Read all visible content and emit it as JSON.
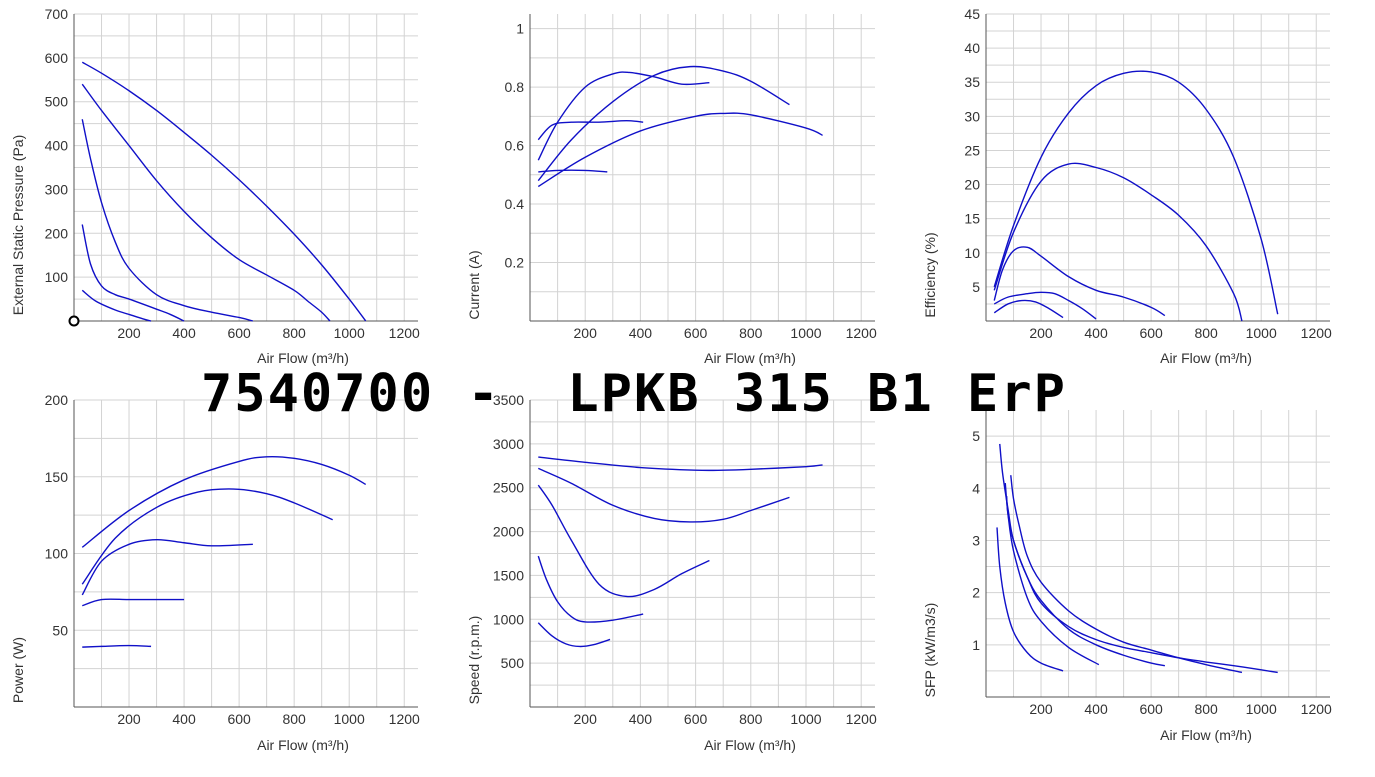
{
  "title": "7540700 -  LPKB 315 B1 ErP",
  "colors": {
    "curve": "#1010c8",
    "grid": "#d3d3d3"
  },
  "chart_data": [
    {
      "id": "pressure",
      "type": "line",
      "xlabel": "Air Flow (m³/h)",
      "ylabel": "External Static Pressure (Pa)",
      "xlim": [
        0,
        1250
      ],
      "ylim": [
        0,
        700
      ],
      "xticks": [
        200,
        400,
        600,
        800,
        1000,
        1200
      ],
      "yticks": [
        100,
        200,
        300,
        400,
        500,
        600,
        700
      ],
      "grid": true,
      "marker": {
        "x": 0,
        "y": 0
      },
      "series": [
        {
          "x": [
            30,
            100,
            200,
            300,
            400,
            500,
            600,
            700,
            800,
            900,
            1000,
            1060
          ],
          "y": [
            590,
            565,
            525,
            480,
            430,
            378,
            322,
            262,
            198,
            128,
            50,
            0
          ]
        },
        {
          "x": [
            30,
            100,
            200,
            300,
            400,
            500,
            600,
            700,
            800,
            850,
            900,
            930
          ],
          "y": [
            540,
            480,
            400,
            320,
            250,
            190,
            140,
            105,
            70,
            45,
            20,
            0
          ]
        },
        {
          "x": [
            30,
            60,
            100,
            150,
            200,
            300,
            400,
            500,
            600,
            650
          ],
          "y": [
            460,
            370,
            270,
            180,
            120,
            60,
            35,
            20,
            8,
            0
          ]
        },
        {
          "x": [
            30,
            60,
            100,
            150,
            200,
            300,
            350,
            400
          ],
          "y": [
            220,
            130,
            80,
            60,
            50,
            27,
            15,
            0
          ]
        },
        {
          "x": [
            30,
            80,
            150,
            200,
            250,
            280
          ],
          "y": [
            70,
            45,
            25,
            15,
            5,
            0
          ]
        }
      ]
    },
    {
      "id": "current",
      "type": "line",
      "xlabel": "Air Flow (m³/h)",
      "ylabel": "Current (A)",
      "xlim": [
        0,
        1250
      ],
      "ylim": [
        0,
        1.05
      ],
      "xticks": [
        200,
        400,
        600,
        800,
        1000,
        1200
      ],
      "yticks": [
        0.2,
        0.4,
        0.6,
        0.8,
        1
      ],
      "grid": true,
      "series": [
        {
          "x": [
            30,
            200,
            400,
            600,
            700,
            800,
            1000,
            1060
          ],
          "y": [
            0.46,
            0.56,
            0.65,
            0.7,
            0.71,
            0.705,
            0.66,
            0.635
          ]
        },
        {
          "x": [
            30,
            150,
            300,
            450,
            580,
            700,
            800,
            940
          ],
          "y": [
            0.48,
            0.62,
            0.75,
            0.84,
            0.87,
            0.855,
            0.82,
            0.74
          ]
        },
        {
          "x": [
            30,
            100,
            200,
            300,
            360,
            450,
            550,
            650
          ],
          "y": [
            0.55,
            0.68,
            0.8,
            0.845,
            0.85,
            0.835,
            0.81,
            0.815
          ]
        },
        {
          "x": [
            30,
            80,
            150,
            250,
            350,
            410
          ],
          "y": [
            0.62,
            0.67,
            0.68,
            0.68,
            0.685,
            0.68
          ]
        },
        {
          "x": [
            30,
            100,
            200,
            280
          ],
          "y": [
            0.51,
            0.515,
            0.515,
            0.51
          ]
        }
      ]
    },
    {
      "id": "efficiency",
      "type": "line",
      "xlabel": "Air Flow (m³/h)",
      "ylabel": "Efficiency (%)",
      "xlim": [
        0,
        1250
      ],
      "ylim": [
        0,
        45
      ],
      "xticks": [
        200,
        400,
        600,
        800,
        1000,
        1200
      ],
      "yticks": [
        5,
        10,
        15,
        20,
        25,
        30,
        35,
        40,
        45
      ],
      "grid": true,
      "series": [
        {
          "x": [
            30,
            100,
            200,
            300,
            400,
            500,
            600,
            700,
            800,
            900,
            1000,
            1060
          ],
          "y": [
            5,
            14,
            24,
            30.5,
            34.5,
            36.3,
            36.5,
            35,
            31,
            24,
            12,
            1
          ]
        },
        {
          "x": [
            30,
            100,
            200,
            300,
            400,
            500,
            600,
            700,
            800,
            900,
            930
          ],
          "y": [
            4.5,
            13,
            20.5,
            23,
            22.5,
            21,
            18.5,
            15.5,
            11,
            4,
            0
          ]
        },
        {
          "x": [
            30,
            60,
            100,
            150,
            200,
            300,
            400,
            500,
            600,
            650
          ],
          "y": [
            3,
            7.5,
            10.3,
            10.8,
            9.5,
            6.5,
            4.5,
            3.5,
            2,
            0.8
          ]
        },
        {
          "x": [
            30,
            80,
            150,
            200,
            250,
            300,
            350,
            400
          ],
          "y": [
            2.5,
            3.5,
            4,
            4.2,
            4,
            3,
            1.8,
            0.3
          ]
        },
        {
          "x": [
            30,
            80,
            130,
            180,
            230,
            280
          ],
          "y": [
            1.2,
            2.5,
            3,
            2.8,
            1.8,
            0.5
          ]
        }
      ]
    },
    {
      "id": "power",
      "type": "line",
      "xlabel": "Air Flow (m³/h)",
      "ylabel": "Power (W)",
      "xlim": [
        0,
        1250
      ],
      "ylim": [
        0,
        200
      ],
      "xticks": [
        200,
        400,
        600,
        800,
        1000,
        1200
      ],
      "yticks": [
        50,
        100,
        150,
        200
      ],
      "grid": true,
      "series": [
        {
          "x": [
            30,
            200,
            400,
            600,
            700,
            800,
            900,
            1000,
            1060
          ],
          "y": [
            104,
            128,
            148,
            160,
            163,
            162,
            158,
            151,
            145
          ]
        },
        {
          "x": [
            30,
            150,
            300,
            450,
            580,
            700,
            800,
            940
          ],
          "y": [
            80,
            110,
            130,
            140,
            142,
            139,
            133,
            122
          ]
        },
        {
          "x": [
            30,
            100,
            200,
            300,
            400,
            500,
            650
          ],
          "y": [
            73,
            95,
            106,
            109,
            107,
            105,
            106
          ]
        },
        {
          "x": [
            30,
            100,
            200,
            300,
            400
          ],
          "y": [
            66,
            70,
            70,
            70,
            70
          ]
        },
        {
          "x": [
            30,
            100,
            200,
            280
          ],
          "y": [
            39,
            39.5,
            40,
            39.5
          ]
        }
      ]
    },
    {
      "id": "speed",
      "type": "line",
      "xlabel": "Air Flow (m³/h)",
      "ylabel": "Speed (r.p.m.)",
      "xlim": [
        0,
        1250
      ],
      "ylim": [
        0,
        3500
      ],
      "xticks": [
        200,
        400,
        600,
        800,
        1000,
        1200
      ],
      "yticks": [
        500,
        1000,
        1500,
        2000,
        2500,
        3000,
        3500
      ],
      "grid": true,
      "series": [
        {
          "x": [
            30,
            200,
            400,
            600,
            700,
            800,
            1000,
            1060
          ],
          "y": [
            2850,
            2790,
            2730,
            2700,
            2700,
            2710,
            2740,
            2760
          ]
        },
        {
          "x": [
            30,
            150,
            300,
            450,
            580,
            700,
            800,
            940
          ],
          "y": [
            2720,
            2550,
            2300,
            2150,
            2110,
            2140,
            2240,
            2390
          ]
        },
        {
          "x": [
            30,
            80,
            150,
            250,
            350,
            450,
            550,
            650
          ],
          "y": [
            2530,
            2300,
            1900,
            1400,
            1260,
            1340,
            1520,
            1670
          ]
        },
        {
          "x": [
            30,
            60,
            100,
            150,
            200,
            300,
            410
          ],
          "y": [
            1720,
            1450,
            1200,
            1030,
            970,
            990,
            1060
          ]
        },
        {
          "x": [
            30,
            80,
            130,
            180,
            230,
            290
          ],
          "y": [
            960,
            810,
            720,
            690,
            710,
            770
          ]
        }
      ]
    },
    {
      "id": "sfp",
      "type": "line",
      "xlabel": "Air Flow (m³/h)",
      "ylabel": "SFP (kW/m3/s)",
      "xlim": [
        0,
        1250
      ],
      "ylim": [
        0,
        5.5
      ],
      "xticks": [
        200,
        400,
        600,
        800,
        1000,
        1200
      ],
      "yticks": [
        1,
        2,
        3,
        4,
        5
      ],
      "grid": true,
      "series": [
        {
          "x": [
            50,
            60,
            80,
            100,
            150,
            200,
            300,
            400,
            500,
            600,
            700,
            800,
            900,
            1000,
            1060
          ],
          "y": [
            4.85,
            4.3,
            3.6,
            3.0,
            2.3,
            1.8,
            1.35,
            1.1,
            0.95,
            0.85,
            0.75,
            0.67,
            0.6,
            0.52,
            0.47
          ]
        },
        {
          "x": [
            90,
            100,
            120,
            150,
            200,
            300,
            400,
            500,
            600,
            700,
            800,
            930
          ],
          "y": [
            4.25,
            3.8,
            3.3,
            2.7,
            2.2,
            1.65,
            1.3,
            1.05,
            0.9,
            0.75,
            0.62,
            0.47
          ]
        },
        {
          "x": [
            75,
            80,
            100,
            150,
            200,
            300,
            400,
            500,
            600,
            650
          ],
          "y": [
            3.85,
            3.5,
            3.0,
            2.3,
            1.85,
            1.3,
            1.0,
            0.8,
            0.65,
            0.6
          ]
        },
        {
          "x": [
            70,
            80,
            100,
            150,
            200,
            300,
            410
          ],
          "y": [
            4.1,
            3.5,
            2.8,
            1.9,
            1.45,
            0.95,
            0.62
          ]
        },
        {
          "x": [
            40,
            50,
            70,
            100,
            150,
            200,
            280
          ],
          "y": [
            3.25,
            2.5,
            1.8,
            1.25,
            0.85,
            0.65,
            0.5
          ]
        }
      ]
    }
  ]
}
